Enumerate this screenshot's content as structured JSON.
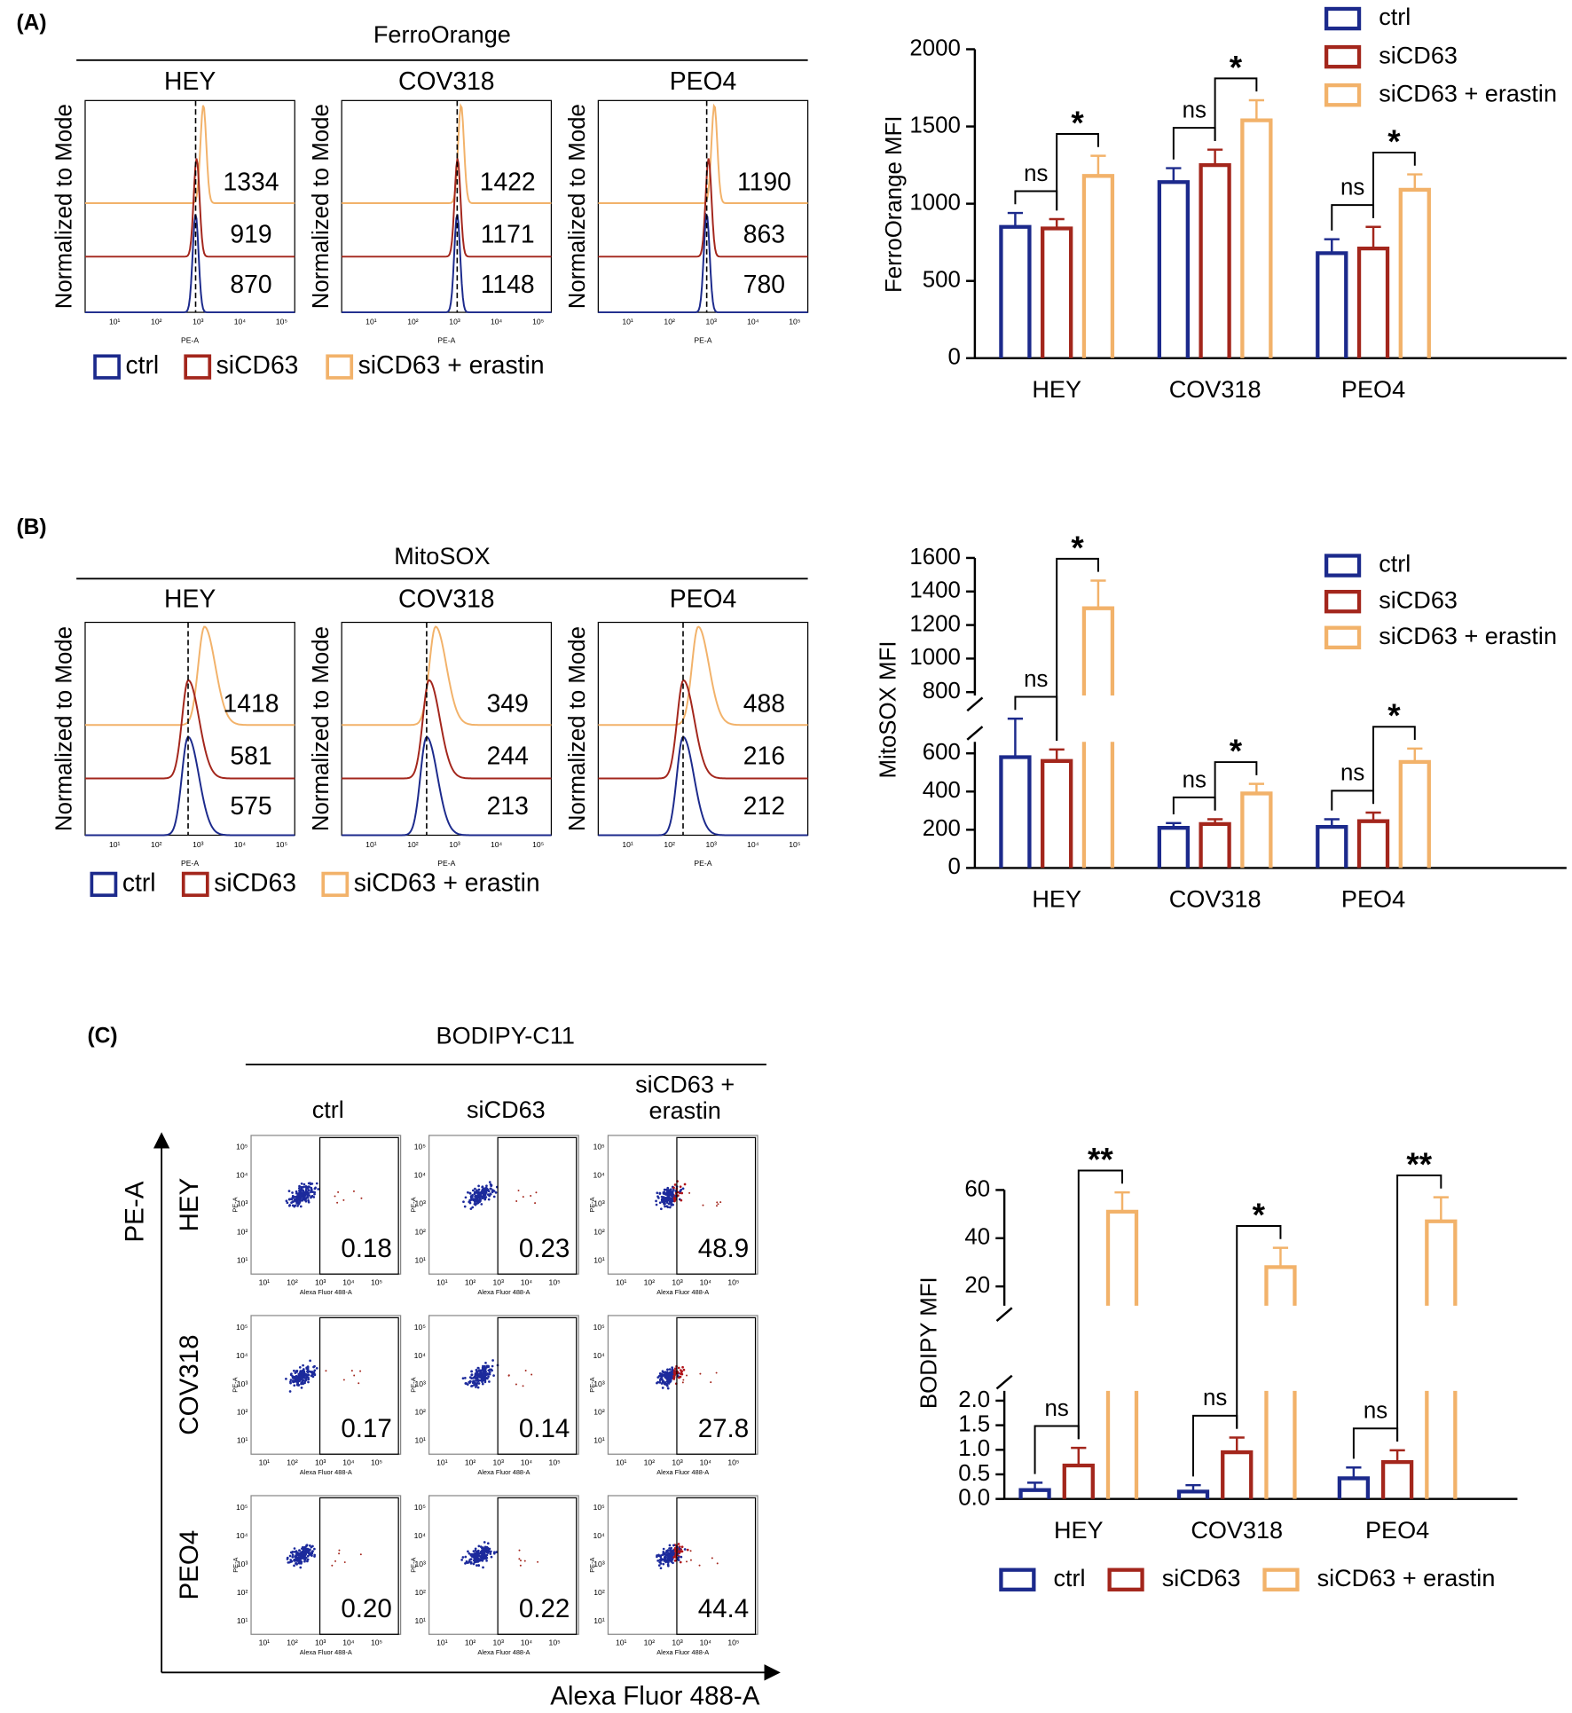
{
  "panel_labels": [
    "(A)",
    "(B)",
    "(C)"
  ],
  "histogram_panels": [
    {
      "stain": "FerroOrange",
      "ylabel": "Normalized to Mode",
      "xlabel": "PE-A",
      "xtick_labels": [
        "10¹",
        "10²",
        "10³",
        "10⁴",
        "10⁵"
      ],
      "cell_lines": [
        {
          "name": "HEY",
          "mfi": [
            1334,
            919,
            870
          ]
        },
        {
          "name": "COV318",
          "mfi": [
            1422,
            1171,
            1148
          ]
        },
        {
          "name": "PEO4",
          "mfi": [
            1190,
            863,
            780
          ]
        }
      ],
      "legend": [
        "ctrl",
        "siCD63",
        "siCD63 + erastin"
      ]
    },
    {
      "stain": "MitoSOX",
      "ylabel": "Normalized to Mode",
      "xlabel": "PE-A",
      "xtick_labels": [
        "10¹",
        "10²",
        "10³",
        "10⁴",
        "10⁵"
      ],
      "cell_lines": [
        {
          "name": "HEY",
          "mfi": [
            1418,
            581,
            575
          ]
        },
        {
          "name": "COV318",
          "mfi": [
            349,
            244,
            213
          ]
        },
        {
          "name": "PEO4",
          "mfi": [
            488,
            216,
            212
          ]
        }
      ],
      "legend": [
        "ctrl",
        "siCD63",
        "siCD63 + erastin"
      ]
    }
  ],
  "scatter_panel": {
    "stain": "BODIPY-C11",
    "columns": [
      "ctrl",
      "siCD63",
      "siCD63 + erastin"
    ],
    "rows": [
      "HEY",
      "COV318",
      "PEO4"
    ],
    "percentages": [
      [
        "0.18",
        "0.23",
        "48.9"
      ],
      [
        "0.17",
        "0.14",
        "27.8"
      ],
      [
        "0.20",
        "0.22",
        "44.4"
      ]
    ],
    "ylabel": "PE-A",
    "xlabel": "Alexa Fluor 488-A",
    "small_ylabel": "PE-A",
    "small_xlabel": "Alexa Fluor 488-A",
    "small_tick_labels": [
      "10¹",
      "10²",
      "10³",
      "10⁴",
      "10⁵"
    ]
  },
  "chart_data": [
    {
      "type": "bar",
      "ylabel": "FerroOrange MFI",
      "categories": [
        "HEY",
        "COV318",
        "PEO4"
      ],
      "series": [
        {
          "name": "ctrl",
          "color": "#1c2a8c",
          "values": [
            850,
            1140,
            680
          ],
          "errors": [
            90,
            90,
            90
          ]
        },
        {
          "name": "siCD63",
          "color": "#a3261c",
          "values": [
            840,
            1250,
            710
          ],
          "errors": [
            60,
            100,
            140
          ]
        },
        {
          "name": "siCD63 + erastin",
          "color": "#f2b26a",
          "values": [
            1180,
            1540,
            1090
          ],
          "errors": [
            130,
            130,
            100
          ]
        }
      ],
      "ylim": [
        0,
        2000
      ],
      "yticks": [
        0,
        500,
        1000,
        1500,
        2000
      ],
      "legend": "top-right",
      "annotations": [
        {
          "text": "ns",
          "category": 0,
          "between": [
            0,
            1
          ]
        },
        {
          "text": "*",
          "category": 0,
          "between": [
            1,
            2
          ]
        },
        {
          "text": "ns",
          "category": 1,
          "between": [
            0,
            1
          ]
        },
        {
          "text": "*",
          "category": 1,
          "between": [
            1,
            2
          ]
        },
        {
          "text": "ns",
          "category": 2,
          "between": [
            0,
            1
          ]
        },
        {
          "text": "*",
          "category": 2,
          "between": [
            1,
            2
          ]
        }
      ]
    },
    {
      "type": "bar",
      "ylabel": "MitoSOX MFI",
      "categories": [
        "HEY",
        "COV318",
        "PEO4"
      ],
      "series": [
        {
          "name": "ctrl",
          "color": "#1c2a8c",
          "values": [
            580,
            210,
            215
          ],
          "errors": [
            95,
            25,
            40
          ]
        },
        {
          "name": "siCD63",
          "color": "#a3261c",
          "values": [
            560,
            230,
            245
          ],
          "errors": [
            60,
            25,
            45
          ]
        },
        {
          "name": "siCD63 + erastin",
          "color": "#f2b26a",
          "values": [
            1300,
            390,
            555
          ],
          "errors": [
            165,
            50,
            70
          ]
        }
      ],
      "ylim": [
        0,
        1600
      ],
      "ybreak": [
        660,
        780
      ],
      "yticks": [
        0,
        200,
        400,
        600,
        800,
        1000,
        1200,
        1400,
        1600
      ],
      "legend": "top-right",
      "annotations": [
        {
          "text": "ns",
          "category": 0,
          "between": [
            0,
            1
          ]
        },
        {
          "text": "*",
          "category": 0,
          "between": [
            1,
            2
          ]
        },
        {
          "text": "ns",
          "category": 1,
          "between": [
            0,
            1
          ]
        },
        {
          "text": "*",
          "category": 1,
          "between": [
            1,
            2
          ]
        },
        {
          "text": "ns",
          "category": 2,
          "between": [
            0,
            1
          ]
        },
        {
          "text": "*",
          "category": 2,
          "between": [
            1,
            2
          ]
        }
      ]
    },
    {
      "type": "bar",
      "ylabel": "BODIPY MFI",
      "categories": [
        "HEY",
        "COV318",
        "PEO4"
      ],
      "series": [
        {
          "name": "ctrl",
          "color": "#1c2a8c",
          "values": [
            0.18,
            0.15,
            0.42
          ],
          "errors": [
            0.15,
            0.13,
            0.22
          ]
        },
        {
          "name": "siCD63",
          "color": "#a3261c",
          "values": [
            0.68,
            0.95,
            0.75
          ],
          "errors": [
            0.36,
            0.3,
            0.24
          ]
        },
        {
          "name": "siCD63 + erastin",
          "color": "#f2b26a",
          "values": [
            51,
            28,
            47
          ],
          "errors": [
            8,
            8,
            10
          ]
        }
      ],
      "ylim": [
        0,
        60
      ],
      "ybreak": [
        2.2,
        12
      ],
      "yticks": [
        {
          "value": 0,
          "label": "0.0"
        },
        0.5,
        {
          "value": 1,
          "label": "1.0"
        },
        1.5,
        {
          "value": 2,
          "label": "2.0"
        },
        20,
        40,
        60
      ],
      "legend": "bottom",
      "annotations": [
        {
          "text": "ns",
          "category": 0,
          "between": [
            0,
            1
          ]
        },
        {
          "text": "**",
          "category": 0,
          "between": [
            1,
            2
          ]
        },
        {
          "text": "ns",
          "category": 1,
          "between": [
            0,
            1
          ]
        },
        {
          "text": "*",
          "category": 1,
          "between": [
            1,
            2
          ]
        },
        {
          "text": "ns",
          "category": 2,
          "between": [
            0,
            1
          ]
        },
        {
          "text": "**",
          "category": 2,
          "between": [
            1,
            2
          ]
        }
      ]
    }
  ]
}
